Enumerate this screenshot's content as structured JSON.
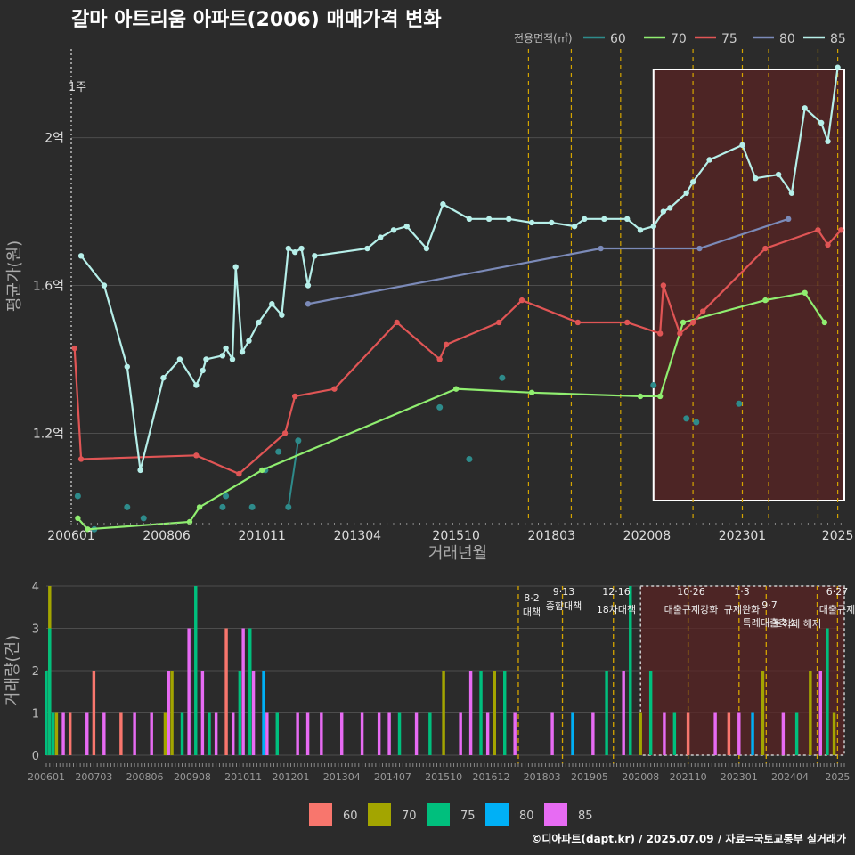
{
  "title": "갈마 아트리움 아파트(2006) 매매가격 변화",
  "credit": "©디아파트(dapt.kr) / 2025.07.09 / 자료=국토교통부 실거래가",
  "colors": {
    "bg": "#2b2b2b",
    "grid": "#4d4d4d",
    "policy_line": "#d4a400",
    "highlight_fill": "#5a2424",
    "highlight_border": "#ffffff"
  },
  "chart_data": [
    {
      "type": "line",
      "ylabel": "평균가(원)",
      "xlabel": "거래년월",
      "x_ticks": [
        "200601",
        "200806",
        "201011",
        "201304",
        "201510",
        "201803",
        "202008",
        "202301",
        "2025"
      ],
      "y_ticks": [
        "1.2억",
        "1.6억",
        "2억"
      ],
      "ylim": [
        0.96,
        2.24
      ],
      "ylim_unit": "억",
      "legend_title": "전용면적(㎡)",
      "legend_position": "top-right",
      "marker_label": "1주",
      "series": [
        {
          "name": "60",
          "color": "#2e8b8b",
          "points": [
            [
              "2006-03",
              1.03
            ],
            [
              "2006-08",
              0.94
            ],
            [
              "2007-06",
              1.0
            ],
            [
              "2007-11",
              0.97
            ],
            [
              "2009-11",
              1.0
            ],
            [
              "2009-12",
              1.03
            ],
            [
              "2010-08",
              1.0
            ],
            [
              "2010-12",
              1.1
            ],
            [
              "2011-04",
              1.15
            ],
            [
              "2011-07",
              1.0
            ],
            [
              "2011-10",
              1.18
            ],
            [
              "2015-05",
              1.27
            ],
            [
              "2016-02",
              1.13
            ],
            [
              "2016-12",
              1.35
            ],
            [
              "2020-10",
              1.33
            ],
            [
              "2021-08",
              1.24
            ],
            [
              "2021-11",
              1.23
            ],
            [
              "2022-12",
              1.28
            ]
          ]
        },
        {
          "name": "70",
          "color": "#90ee70",
          "points": [
            [
              "2006-03",
              0.97
            ],
            [
              "2006-06",
              0.94
            ],
            [
              "2009-01",
              0.96
            ],
            [
              "2009-04",
              1.0
            ],
            [
              "2010-11",
              1.1
            ],
            [
              "2015-10",
              1.32
            ],
            [
              "2017-09",
              1.31
            ],
            [
              "2020-06",
              1.3
            ],
            [
              "2020-12",
              1.3
            ],
            [
              "2021-07",
              1.5
            ],
            [
              "2023-08",
              1.56
            ],
            [
              "2024-08",
              1.58
            ],
            [
              "2025-02",
              1.5
            ]
          ]
        },
        {
          "name": "75",
          "color": "#e05555",
          "points": [
            [
              "2006-02",
              1.43
            ],
            [
              "2006-04",
              1.13
            ],
            [
              "2009-03",
              1.14
            ],
            [
              "2010-04",
              1.09
            ],
            [
              "2011-06",
              1.2
            ],
            [
              "2011-09",
              1.3
            ],
            [
              "2012-09",
              1.32
            ],
            [
              "2014-04",
              1.5
            ],
            [
              "2015-05",
              1.4
            ],
            [
              "2015-07",
              1.44
            ],
            [
              "2016-11",
              1.5
            ],
            [
              "2017-06",
              1.56
            ],
            [
              "2018-11",
              1.5
            ],
            [
              "2020-02",
              1.5
            ],
            [
              "2020-12",
              1.47
            ],
            [
              "2021-01",
              1.6
            ],
            [
              "2021-06",
              1.47
            ],
            [
              "2021-10",
              1.5
            ],
            [
              "2022-01",
              1.53
            ],
            [
              "2023-08",
              1.7
            ],
            [
              "2024-12",
              1.75
            ],
            [
              "2025-03",
              1.71
            ],
            [
              "2025-07",
              1.75
            ]
          ]
        },
        {
          "name": "80",
          "color": "#7b8ab8",
          "points": [
            [
              "2012-01",
              1.55
            ],
            [
              "2019-06",
              1.7
            ],
            [
              "2021-12",
              1.7
            ],
            [
              "2024-03",
              1.78
            ]
          ]
        },
        {
          "name": "85",
          "color": "#b6efe9",
          "points": [
            [
              "2006-04",
              1.68
            ],
            [
              "2006-11",
              1.6
            ],
            [
              "2007-06",
              1.38
            ],
            [
              "2007-10",
              1.1
            ],
            [
              "2008-05",
              1.35
            ],
            [
              "2008-10",
              1.4
            ],
            [
              "2009-03",
              1.33
            ],
            [
              "2009-05",
              1.37
            ],
            [
              "2009-06",
              1.4
            ],
            [
              "2009-11",
              1.41
            ],
            [
              "2009-12",
              1.43
            ],
            [
              "2010-02",
              1.4
            ],
            [
              "2010-03",
              1.65
            ],
            [
              "2010-05",
              1.42
            ],
            [
              "2010-07",
              1.45
            ],
            [
              "2010-10",
              1.5
            ],
            [
              "2011-02",
              1.55
            ],
            [
              "2011-05",
              1.52
            ],
            [
              "2011-07",
              1.7
            ],
            [
              "2011-09",
              1.69
            ],
            [
              "2011-11",
              1.7
            ],
            [
              "2012-01",
              1.6
            ],
            [
              "2012-03",
              1.68
            ],
            [
              "2013-07",
              1.7
            ],
            [
              "2013-11",
              1.73
            ],
            [
              "2014-03",
              1.75
            ],
            [
              "2014-07",
              1.76
            ],
            [
              "2015-01",
              1.7
            ],
            [
              "2015-06",
              1.82
            ],
            [
              "2016-02",
              1.78
            ],
            [
              "2016-08",
              1.78
            ],
            [
              "2017-02",
              1.78
            ],
            [
              "2017-09",
              1.77
            ],
            [
              "2018-03",
              1.77
            ],
            [
              "2018-10",
              1.76
            ],
            [
              "2019-01",
              1.78
            ],
            [
              "2019-07",
              1.78
            ],
            [
              "2020-02",
              1.78
            ],
            [
              "2020-06",
              1.75
            ],
            [
              "2020-10",
              1.76
            ],
            [
              "2021-01",
              1.8
            ],
            [
              "2021-03",
              1.81
            ],
            [
              "2021-08",
              1.85
            ],
            [
              "2021-10",
              1.88
            ],
            [
              "2022-03",
              1.94
            ],
            [
              "2023-01",
              1.98
            ],
            [
              "2023-05",
              1.89
            ],
            [
              "2023-12",
              1.9
            ],
            [
              "2024-04",
              1.85
            ],
            [
              "2024-08",
              2.08
            ],
            [
              "2025-01",
              2.04
            ],
            [
              "2025-03",
              1.99
            ],
            [
              "2025-06",
              2.19
            ]
          ]
        }
      ],
      "policy_months": [
        "2017-08",
        "2018-09",
        "2019-12",
        "2021-10",
        "2023-01",
        "2023-09",
        "2024-12",
        "2025-06"
      ]
    },
    {
      "type": "bar",
      "ylabel": "거래량(건)",
      "x_ticks": [
        "200601",
        "200703",
        "200806",
        "200908",
        "201011",
        "201201",
        "201304",
        "201407",
        "201510",
        "201612",
        "201803",
        "201905",
        "202008",
        "202110",
        "202301",
        "202404",
        "2025"
      ],
      "y_ticks": [
        "0",
        "1",
        "2",
        "3",
        "4"
      ],
      "ylim": [
        0,
        4
      ],
      "legend": [
        {
          "name": "60",
          "color": "#f8766d"
        },
        {
          "name": "70",
          "color": "#a3a500"
        },
        {
          "name": "75",
          "color": "#00bf7d"
        },
        {
          "name": "80",
          "color": "#00b0f6"
        },
        {
          "name": "85",
          "color": "#e76bf3"
        }
      ],
      "policy_labels": [
        {
          "date": "8·2",
          "name": "대책"
        },
        {
          "date": "9·13",
          "name": "종합대책"
        },
        {
          "date": "12·16",
          "name": "18차대책"
        },
        {
          "date": "10·26",
          "name": "대출규제강화"
        },
        {
          "date": "1·3",
          "name": "규제완화"
        },
        {
          "date": "9·7",
          "name": "특례대출축소"
        },
        {
          "date": "",
          "name": "토허제 해제"
        },
        {
          "date": "6·27",
          "name": "대출규제"
        }
      ],
      "bars": [
        [
          "2006-01",
          "75",
          2
        ],
        [
          "2006-02",
          "70",
          4
        ],
        [
          "2006-02",
          "75",
          3
        ],
        [
          "2006-03",
          "75",
          1
        ],
        [
          "2006-04",
          "70",
          1
        ],
        [
          "2006-06",
          "85",
          1
        ],
        [
          "2006-08",
          "60",
          1
        ],
        [
          "2007-01",
          "85",
          1
        ],
        [
          "2007-03",
          "60",
          2
        ],
        [
          "2007-06",
          "85",
          1
        ],
        [
          "2007-11",
          "60",
          1
        ],
        [
          "2008-03",
          "85",
          1
        ],
        [
          "2008-08",
          "85",
          1
        ],
        [
          "2008-12",
          "70",
          1
        ],
        [
          "2009-01",
          "85",
          2
        ],
        [
          "2009-02",
          "70",
          2
        ],
        [
          "2009-05",
          "75",
          1
        ],
        [
          "2009-07",
          "85",
          3
        ],
        [
          "2009-09",
          "75",
          4
        ],
        [
          "2009-11",
          "85",
          2
        ],
        [
          "2010-01",
          "75",
          1
        ],
        [
          "2010-03",
          "85",
          1
        ],
        [
          "2010-06",
          "60",
          3
        ],
        [
          "2010-08",
          "85",
          1
        ],
        [
          "2010-10",
          "75",
          2
        ],
        [
          "2010-11",
          "85",
          3
        ],
        [
          "2011-01",
          "75",
          3
        ],
        [
          "2011-02",
          "85",
          2
        ],
        [
          "2011-05",
          "80",
          2
        ],
        [
          "2011-06",
          "85",
          1
        ],
        [
          "2011-09",
          "75",
          1
        ],
        [
          "2012-03",
          "85",
          1
        ],
        [
          "2012-06",
          "85",
          1
        ],
        [
          "2012-10",
          "85",
          1
        ],
        [
          "2013-04",
          "85",
          1
        ],
        [
          "2013-10",
          "85",
          1
        ],
        [
          "2014-03",
          "85",
          1
        ],
        [
          "2014-06",
          "85",
          1
        ],
        [
          "2014-09",
          "75",
          1
        ],
        [
          "2015-02",
          "85",
          1
        ],
        [
          "2015-06",
          "75",
          1
        ],
        [
          "2015-10",
          "70",
          2
        ],
        [
          "2016-03",
          "85",
          1
        ],
        [
          "2016-06",
          "85",
          2
        ],
        [
          "2016-09",
          "75",
          2
        ],
        [
          "2016-11",
          "85",
          1
        ],
        [
          "2017-01",
          "70",
          2
        ],
        [
          "2017-04",
          "75",
          2
        ],
        [
          "2017-07",
          "85",
          1
        ],
        [
          "2018-06",
          "85",
          1
        ],
        [
          "2018-12",
          "80",
          1
        ],
        [
          "2019-06",
          "85",
          1
        ],
        [
          "2019-10",
          "75",
          2
        ],
        [
          "2020-03",
          "85",
          2
        ],
        [
          "2020-05",
          "75",
          4
        ],
        [
          "2020-08",
          "70",
          1
        ],
        [
          "2020-11",
          "75",
          2
        ],
        [
          "2021-03",
          "85",
          1
        ],
        [
          "2021-06",
          "75",
          1
        ],
        [
          "2021-10",
          "60",
          1
        ],
        [
          "2022-06",
          "85",
          1
        ],
        [
          "2022-10",
          "60",
          1
        ],
        [
          "2023-01",
          "85",
          1
        ],
        [
          "2023-05",
          "80",
          1
        ],
        [
          "2023-08",
          "70",
          2
        ],
        [
          "2024-02",
          "85",
          1
        ],
        [
          "2024-06",
          "75",
          1
        ],
        [
          "2024-10",
          "70",
          2
        ],
        [
          "2025-01",
          "85",
          2
        ],
        [
          "2025-03",
          "75",
          3
        ],
        [
          "2025-05",
          "70",
          1
        ]
      ]
    }
  ]
}
